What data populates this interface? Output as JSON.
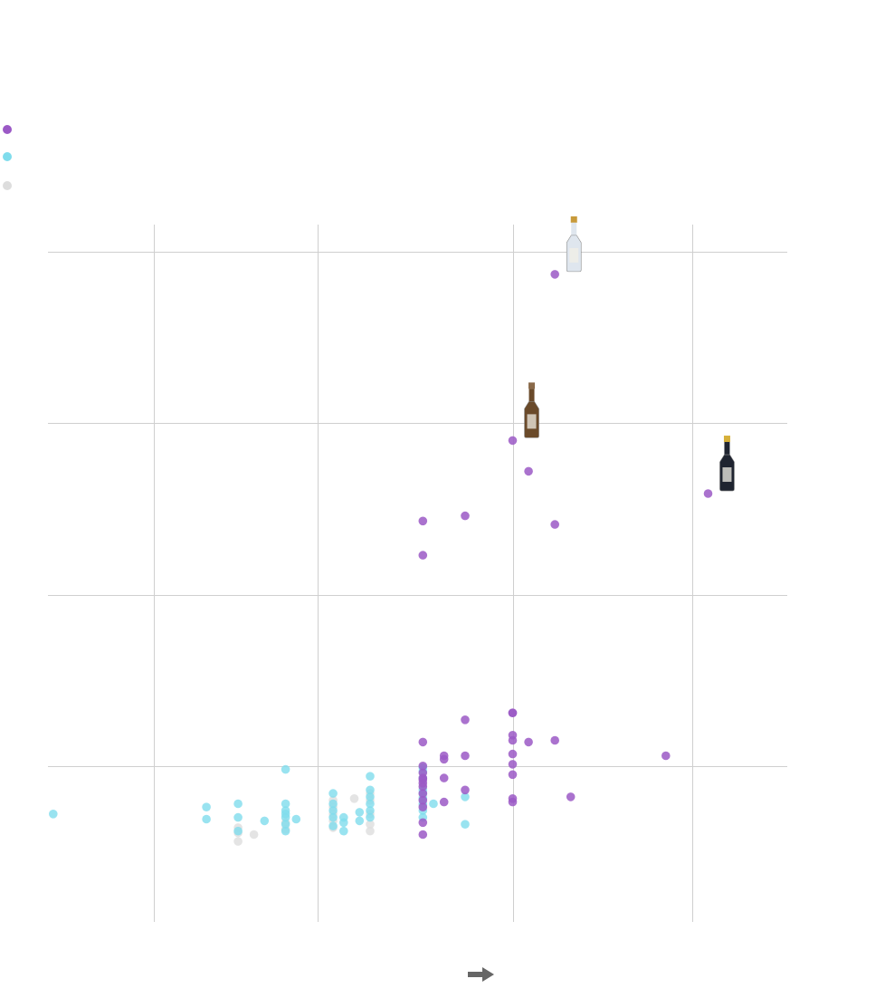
{
  "legend": {
    "entries": [
      {
        "key": "purple",
        "color": "#9b59c6"
      },
      {
        "key": "cyan",
        "color": "#7fdcec"
      },
      {
        "key": "grey",
        "color": "#dddddd"
      }
    ]
  },
  "colors": {
    "grid": "#cfcfcf",
    "arrow": "#666666",
    "purple": "#9b59c6",
    "cyan": "#7fdcec",
    "grey": "#dddddd"
  },
  "icons": {
    "x_axis_direction": "right-arrow-icon",
    "bottle_icon": "sake-bottle-icon"
  },
  "chart_data": {
    "type": "scatter",
    "title": "",
    "xlabel": "",
    "ylabel": "",
    "x_gridlines": [
      0.6,
      0.91,
      1.28,
      1.62
    ],
    "y_gridlines": [
      1,
      2,
      3,
      4
    ],
    "xlim": [
      0.4,
      1.8
    ],
    "ylim": [
      0.09,
      4.16
    ],
    "grid": true,
    "legend_placement": "top-left",
    "series": [
      {
        "key": "purple",
        "points": [
          [
            1.11,
            0.6
          ],
          [
            1.11,
            0.67
          ],
          [
            1.11,
            0.76
          ],
          [
            1.11,
            0.8
          ],
          [
            1.11,
            0.84
          ],
          [
            1.11,
            0.88
          ],
          [
            1.11,
            0.9
          ],
          [
            1.11,
            0.92
          ],
          [
            1.11,
            0.93
          ],
          [
            1.11,
            0.96
          ],
          [
            1.11,
            1.0
          ],
          [
            1.11,
            1.14
          ],
          [
            1.15,
            0.79
          ],
          [
            1.15,
            0.93
          ],
          [
            1.15,
            1.04
          ],
          [
            1.15,
            1.06
          ],
          [
            1.19,
            0.86
          ],
          [
            1.19,
            1.06
          ],
          [
            1.19,
            1.27
          ],
          [
            1.19,
            2.46
          ],
          [
            1.28,
            0.79
          ],
          [
            1.28,
            0.81
          ],
          [
            1.28,
            0.95
          ],
          [
            1.28,
            1.01
          ],
          [
            1.28,
            1.07
          ],
          [
            1.28,
            1.15
          ],
          [
            1.28,
            1.18
          ],
          [
            1.28,
            1.31
          ],
          [
            1.28,
            2.9
          ],
          [
            1.28,
            1.31
          ],
          [
            1.31,
            1.14
          ],
          [
            1.31,
            2.72
          ],
          [
            1.36,
            1.15
          ],
          [
            1.36,
            2.41
          ],
          [
            1.36,
            3.87
          ],
          [
            1.39,
            0.82
          ],
          [
            1.57,
            1.06
          ],
          [
            1.65,
            2.59
          ],
          [
            1.11,
            2.43
          ],
          [
            1.11,
            2.23
          ]
        ]
      },
      {
        "key": "cyan",
        "points": [
          [
            0.41,
            0.72
          ],
          [
            0.7,
            0.69
          ],
          [
            0.7,
            0.76
          ],
          [
            0.76,
            0.62
          ],
          [
            0.76,
            0.7
          ],
          [
            0.76,
            0.78
          ],
          [
            0.81,
            0.68
          ],
          [
            0.85,
            0.62
          ],
          [
            0.85,
            0.66
          ],
          [
            0.85,
            0.7
          ],
          [
            0.85,
            0.72
          ],
          [
            0.85,
            0.74
          ],
          [
            0.85,
            0.78
          ],
          [
            0.85,
            0.98
          ],
          [
            0.87,
            0.69
          ],
          [
            0.94,
            0.65
          ],
          [
            0.94,
            0.7
          ],
          [
            0.94,
            0.74
          ],
          [
            0.94,
            0.78
          ],
          [
            0.94,
            0.84
          ],
          [
            0.96,
            0.62
          ],
          [
            0.96,
            0.67
          ],
          [
            0.96,
            0.7
          ],
          [
            0.99,
            0.68
          ],
          [
            0.99,
            0.73
          ],
          [
            1.01,
            0.7
          ],
          [
            1.01,
            0.74
          ],
          [
            1.01,
            0.78
          ],
          [
            1.01,
            0.82
          ],
          [
            1.01,
            0.86
          ],
          [
            1.01,
            0.94
          ],
          [
            1.11,
            0.7
          ],
          [
            1.11,
            0.74
          ],
          [
            1.11,
            0.78
          ],
          [
            1.11,
            0.81
          ],
          [
            1.11,
            0.84
          ],
          [
            1.11,
            0.86
          ],
          [
            1.11,
            0.93
          ],
          [
            1.11,
            0.97
          ],
          [
            1.11,
            0.99
          ],
          [
            1.13,
            0.78
          ],
          [
            1.19,
            0.66
          ],
          [
            1.19,
            0.82
          ]
        ]
      },
      {
        "key": "grey",
        "points": [
          [
            0.76,
            0.56
          ],
          [
            0.76,
            0.61
          ],
          [
            0.76,
            0.64
          ],
          [
            0.79,
            0.6
          ],
          [
            0.85,
            0.63
          ],
          [
            0.85,
            0.67
          ],
          [
            0.94,
            0.64
          ],
          [
            0.94,
            0.68
          ],
          [
            0.94,
            0.72
          ],
          [
            0.94,
            0.76
          ],
          [
            0.94,
            0.8
          ],
          [
            0.98,
            0.81
          ],
          [
            1.01,
            0.62
          ],
          [
            1.01,
            0.66
          ],
          [
            1.01,
            0.72
          ],
          [
            1.01,
            0.8
          ],
          [
            1.01,
            0.84
          ],
          [
            1.11,
            0.77
          ],
          [
            1.11,
            0.82
          ],
          [
            1.11,
            0.88
          ]
        ]
      }
    ],
    "highlighted_bottles": [
      {
        "name": "bottle-top",
        "at": [
          1.36,
          3.87
        ],
        "glass": "#dfe6ee",
        "cap": "#c89a3a"
      },
      {
        "name": "bottle-middle",
        "at": [
          1.28,
          2.9
        ],
        "glass": "#6a4a2a",
        "cap": "#8a6a4a"
      },
      {
        "name": "bottle-right",
        "at": [
          1.65,
          2.59
        ],
        "glass": "#1f2430",
        "cap": "#d6b03a"
      }
    ]
  }
}
